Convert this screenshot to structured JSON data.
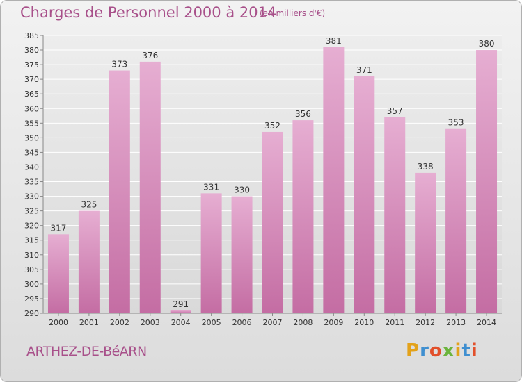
{
  "title": "Charges de Personnel 2000 à 2014",
  "subtitle": "(en milliers d'€)",
  "place": "ARTHEZ-DE-BéARN",
  "logo": {
    "text": "Proxiti",
    "colors": [
      "#e3a21a",
      "#3f8fd0",
      "#e2502b",
      "#6bb43c"
    ]
  },
  "colors": {
    "bar": "#c46da3",
    "bar_light": "#e6aed2",
    "text": "#a8508a",
    "grid": "#ffffff"
  },
  "chart_data": {
    "type": "bar",
    "title": "Charges de Personnel 2000 à 2014",
    "categories": [
      "2000",
      "2001",
      "2002",
      "2003",
      "2004",
      "2005",
      "2006",
      "2007",
      "2008",
      "2009",
      "2010",
      "2011",
      "2012",
      "2013",
      "2014"
    ],
    "values": [
      317,
      325,
      373,
      376,
      291,
      331,
      330,
      352,
      356,
      381,
      371,
      357,
      338,
      353,
      380
    ],
    "ylim": [
      290,
      385
    ],
    "yticks": [
      290,
      295,
      300,
      305,
      310,
      315,
      320,
      325,
      330,
      335,
      340,
      345,
      350,
      355,
      360,
      365,
      370,
      375,
      380,
      385
    ],
    "grid": true,
    "data_labels": true
  }
}
